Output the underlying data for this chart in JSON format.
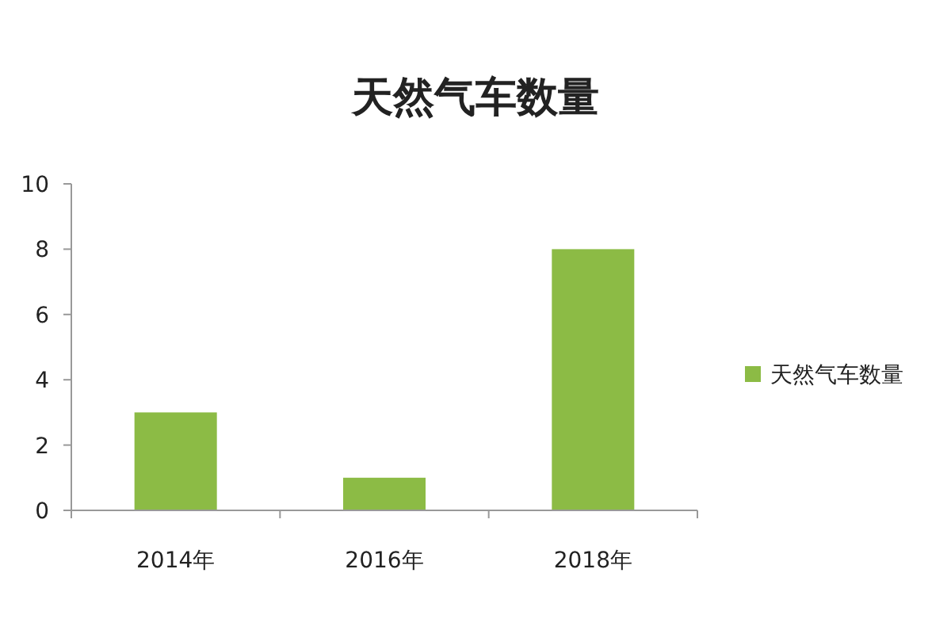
{
  "chart_data": {
    "type": "bar",
    "title": "天然气车数量",
    "categories": [
      "2014年",
      "2016年",
      "2018年"
    ],
    "series": [
      {
        "name": "天然气车数量",
        "color": "#8cbb45",
        "values": [
          3,
          1,
          8
        ]
      }
    ],
    "ylim": [
      0,
      10
    ],
    "yticks": [
      0,
      2,
      4,
      6,
      8,
      10
    ],
    "grid": false,
    "legend": "right"
  }
}
